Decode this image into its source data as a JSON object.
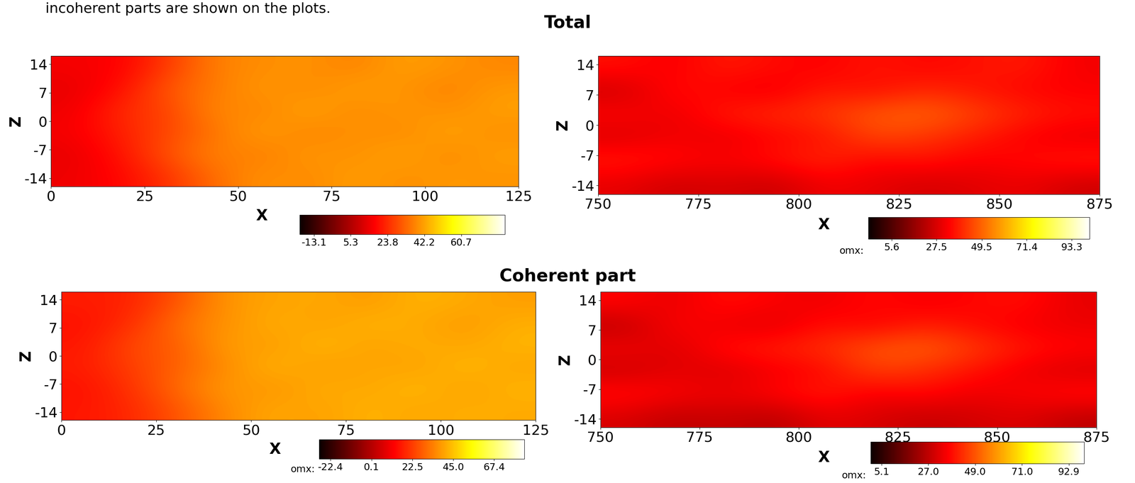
{
  "caption": "incoherent parts are shown on the plots.",
  "section_titles": [
    "Total",
    "Coherent part"
  ],
  "chart_data": [
    {
      "type": "heatmap",
      "xlabel": "X",
      "ylabel": "Z",
      "xlim": [
        0,
        125
      ],
      "ylim": [
        -16,
        16
      ],
      "xticks": [
        0,
        25,
        50,
        75,
        100,
        125
      ],
      "yticks": [
        -14,
        -7,
        0,
        7,
        14
      ],
      "cells": [
        [
          15,
          18,
          25,
          34,
          40,
          38,
          42,
          39,
          41,
          40
        ],
        [
          14,
          20,
          30,
          38,
          36,
          41,
          39,
          43,
          38,
          42
        ],
        [
          16,
          22,
          28,
          35,
          42,
          37,
          40,
          38,
          43,
          39
        ],
        [
          15,
          24,
          27,
          39,
          37,
          43,
          38,
          41,
          39,
          42
        ],
        [
          14,
          19,
          31,
          36,
          41,
          38,
          42,
          40,
          37,
          41
        ],
        [
          16,
          17,
          26,
          37,
          39,
          40,
          37,
          42,
          40,
          38
        ]
      ],
      "colorbar": {
        "range": [
          -20.3,
          82.7
        ],
        "ticks": [
          -13.1,
          5.3,
          23.8,
          42.2,
          60.7
        ]
      }
    },
    {
      "type": "heatmap",
      "xlabel": "X",
      "ylabel": "Z",
      "xlim": [
        750,
        875
      ],
      "ylim": [
        -16,
        16
      ],
      "xticks": [
        750,
        775,
        800,
        825,
        850,
        875
      ],
      "yticks": [
        -14,
        -7,
        0,
        7,
        14
      ],
      "cells": [
        [
          30,
          26,
          28,
          25,
          32,
          30,
          27,
          29,
          31,
          26
        ],
        [
          38,
          35,
          33,
          36,
          40,
          34,
          37,
          33,
          35,
          38
        ],
        [
          28,
          32,
          30,
          34,
          36,
          45,
          42,
          38,
          33,
          30
        ],
        [
          34,
          30,
          38,
          40,
          42,
          48,
          50,
          44,
          39,
          36
        ],
        [
          26,
          36,
          33,
          31,
          38,
          35,
          40,
          37,
          34,
          33
        ],
        [
          36,
          32,
          38,
          35,
          33,
          37,
          34,
          36,
          38,
          32
        ]
      ],
      "colorbar": {
        "range": [
          -5.7,
          102
        ],
        "ticks": [
          5.6,
          27.5,
          49.5,
          71.4,
          93.3
        ],
        "label": "omx:"
      }
    },
    {
      "type": "heatmap",
      "xlabel": "X",
      "ylabel": "Z",
      "xlim": [
        0,
        125
      ],
      "ylim": [
        -16,
        16
      ],
      "xticks": [
        0,
        25,
        50,
        75,
        100,
        125
      ],
      "yticks": [
        -14,
        -7,
        0,
        7,
        14
      ],
      "cells": [
        [
          16,
          19,
          27,
          36,
          41,
          39,
          43,
          40,
          42,
          41
        ],
        [
          15,
          21,
          31,
          39,
          37,
          42,
          40,
          44,
          39,
          43
        ],
        [
          17,
          23,
          29,
          36,
          43,
          38,
          41,
          39,
          44,
          40
        ],
        [
          16,
          25,
          28,
          40,
          38,
          44,
          39,
          42,
          40,
          43
        ],
        [
          15,
          20,
          32,
          37,
          42,
          39,
          43,
          41,
          38,
          42
        ],
        [
          17,
          18,
          27,
          38,
          40,
          41,
          38,
          43,
          41,
          39
        ]
      ],
      "colorbar": {
        "range": [
          -28.7,
          84
        ],
        "ticks": [
          -22.4,
          0.1,
          22.5,
          45.0,
          67.4
        ],
        "label": "omx:"
      }
    },
    {
      "type": "heatmap",
      "xlabel": "X",
      "ylabel": "Z",
      "xlim": [
        750,
        875
      ],
      "ylim": [
        -16,
        16
      ],
      "xticks": [
        750,
        775,
        800,
        825,
        850,
        875
      ],
      "yticks": [
        -14,
        -7,
        0,
        7,
        14
      ],
      "cells": [
        [
          31,
          27,
          29,
          26,
          33,
          31,
          28,
          30,
          32,
          27
        ],
        [
          39,
          36,
          34,
          37,
          41,
          35,
          38,
          34,
          36,
          39
        ],
        [
          29,
          33,
          31,
          35,
          37,
          46,
          43,
          39,
          34,
          31
        ],
        [
          35,
          31,
          39,
          41,
          43,
          49,
          51,
          45,
          40,
          37
        ],
        [
          27,
          37,
          34,
          32,
          39,
          36,
          41,
          38,
          35,
          34
        ],
        [
          37,
          33,
          39,
          36,
          34,
          38,
          35,
          37,
          39,
          33
        ]
      ],
      "colorbar": {
        "range": [
          0,
          100
        ],
        "ticks": [
          5.1,
          27.0,
          49.0,
          71.0,
          92.9
        ],
        "label": "omx:"
      }
    }
  ]
}
